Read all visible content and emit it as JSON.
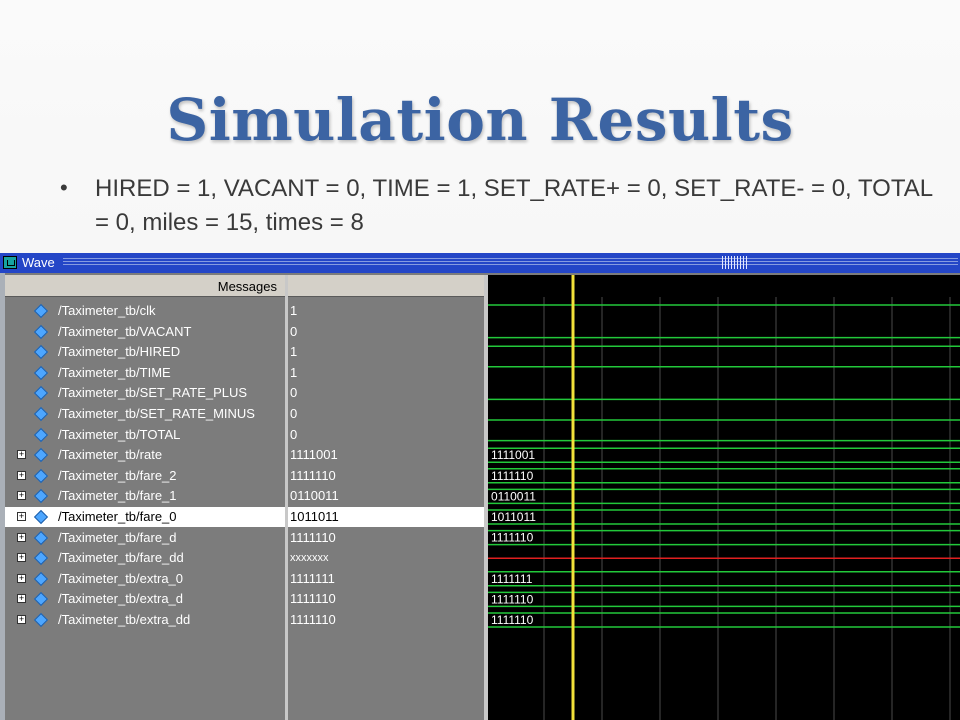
{
  "slide": {
    "title": "Simulation Results",
    "bullet": "HIRED = 1, VACANT  = 0, TIME = 1, SET_RATE+ = 0, SET_RATE- = 0, TOTAL = 0, miles  = 15, times = 8"
  },
  "window": {
    "title": "Wave",
    "icon": "wave-window-icon",
    "messages_header": "Messages"
  },
  "signals": [
    {
      "name": "/Taximeter_tb/clk",
      "value": "1",
      "expandable": false,
      "type": "bit"
    },
    {
      "name": "/Taximeter_tb/VACANT",
      "value": "0",
      "expandable": false,
      "type": "bit"
    },
    {
      "name": "/Taximeter_tb/HIRED",
      "value": "1",
      "expandable": false,
      "type": "bit"
    },
    {
      "name": "/Taximeter_tb/TIME",
      "value": "1",
      "expandable": false,
      "type": "bit"
    },
    {
      "name": "/Taximeter_tb/SET_RATE_PLUS",
      "value": "0",
      "expandable": false,
      "type": "bit"
    },
    {
      "name": "/Taximeter_tb/SET_RATE_MINUS",
      "value": "0",
      "expandable": false,
      "type": "bit"
    },
    {
      "name": "/Taximeter_tb/TOTAL",
      "value": "0",
      "expandable": false,
      "type": "bit"
    },
    {
      "name": "/Taximeter_tb/rate",
      "value": "1111001",
      "expandable": true,
      "type": "bus",
      "wave_label": "1111001"
    },
    {
      "name": "/Taximeter_tb/fare_2",
      "value": "1111110",
      "expandable": true,
      "type": "bus",
      "wave_label": "1111110"
    },
    {
      "name": "/Taximeter_tb/fare_1",
      "value": "0110011",
      "expandable": true,
      "type": "bus",
      "wave_label": "0110011"
    },
    {
      "name": "/Taximeter_tb/fare_0",
      "value": "1011011",
      "expandable": true,
      "type": "bus",
      "wave_label": "1011011",
      "selected": true
    },
    {
      "name": "/Taximeter_tb/fare_d",
      "value": "1111110",
      "expandable": true,
      "type": "bus",
      "wave_label": "1111110"
    },
    {
      "name": "/Taximeter_tb/fare_dd",
      "value": "xxxxxxx",
      "expandable": true,
      "type": "unknown",
      "wave_label": ""
    },
    {
      "name": "/Taximeter_tb/extra_0",
      "value": "1111111",
      "expandable": true,
      "type": "bus",
      "wave_label": "1111111"
    },
    {
      "name": "/Taximeter_tb/extra_d",
      "value": "1111110",
      "expandable": true,
      "type": "bus",
      "wave_label": "1111110"
    },
    {
      "name": "/Taximeter_tb/extra_dd",
      "value": "1111110",
      "expandable": true,
      "type": "bus",
      "wave_label": "1111110"
    }
  ],
  "colors": {
    "title": "#3c64a3",
    "titlebar": "#2446c7",
    "wave_green": "#22c83a",
    "wave_unknown": "#e02020",
    "cursor": "#f2e13a",
    "grid": "#4a4a4a",
    "signal_icon": "#4da6ff"
  }
}
